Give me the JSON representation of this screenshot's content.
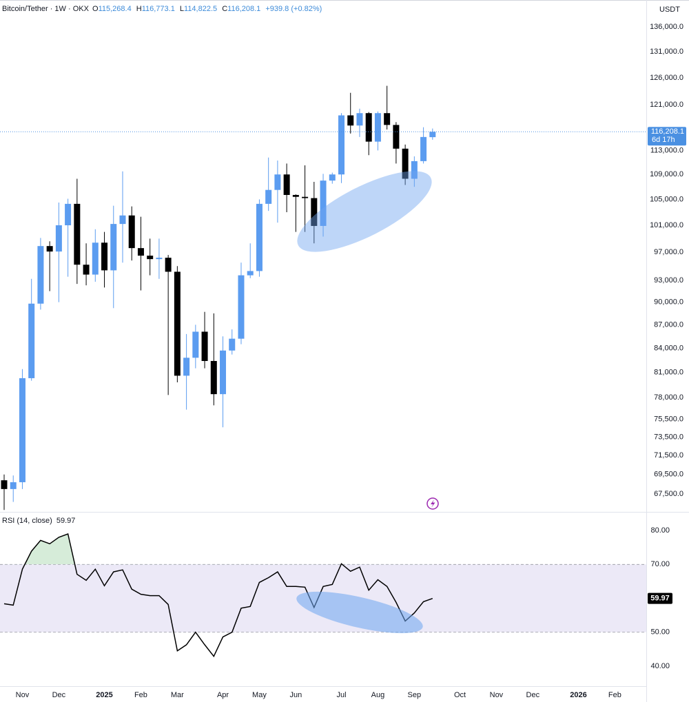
{
  "chart_data": [
    {
      "type": "candlestick",
      "title": "Bitcoin/Tether · 1W · OKX",
      "ohlc_labels": {
        "O": "115,268.4",
        "H": "116,773.1",
        "L": "114,822.5",
        "C": "116,208.1"
      },
      "change": "+939.8 (+0.82%)",
      "currency": "USDT",
      "price_badge": "116,208.1",
      "countdown": "6d 17h",
      "categories": [
        null,
        null,
        "Nov",
        null,
        null,
        null,
        "Dec",
        null,
        null,
        null,
        null,
        "2025",
        null,
        null,
        null,
        "Feb",
        null,
        null,
        null,
        "Mar",
        null,
        null,
        null,
        null,
        "Apr",
        null,
        null,
        null,
        "May",
        null,
        null,
        null,
        "Jun",
        null,
        null,
        null,
        null,
        "Jul",
        null,
        null,
        null,
        "Aug",
        null,
        null,
        null,
        "Sep",
        null,
        null,
        null,
        null,
        "Oct",
        null,
        null,
        null,
        "Nov",
        null,
        null,
        null,
        "Dec",
        null,
        null,
        null,
        null,
        "2026",
        null,
        null,
        null,
        "Feb",
        null,
        null,
        null
      ],
      "open": [
        68900,
        68000,
        68700,
        80300,
        89800,
        97900,
        97100,
        101000,
        104300,
        95200,
        93800,
        98400,
        94400,
        101200,
        102500,
        97600,
        96500,
        96000,
        96200,
        94200,
        80600,
        82800,
        86100,
        82400,
        78400,
        83700,
        85200,
        93700,
        94300,
        104300,
        106500,
        109000,
        105700,
        105400,
        105200,
        100900,
        108000,
        109000,
        119100,
        117300,
        119500,
        114500,
        119500,
        117400,
        113300,
        108300,
        111200,
        115268.4,
        null,
        null,
        null,
        null,
        null,
        null,
        null,
        null,
        null,
        null,
        null,
        null,
        null,
        null,
        null,
        null,
        null,
        null,
        null,
        null,
        null,
        null,
        null
      ],
      "high": [
        69500,
        69400,
        81400,
        93200,
        99100,
        98600,
        104500,
        105100,
        108300,
        98300,
        100400,
        100000,
        104000,
        109500,
        103900,
        102300,
        99000,
        99000,
        96600,
        95000,
        85800,
        87000,
        88700,
        88500,
        85500,
        86400,
        95500,
        98300,
        105000,
        111800,
        111300,
        110800,
        105800,
        110500,
        107800,
        109100,
        109300,
        119500,
        123200,
        120300,
        119700,
        119800,
        124500,
        117900,
        114000,
        112000,
        117000,
        116773.1,
        null,
        null,
        null,
        null,
        null,
        null,
        null,
        null,
        null,
        null,
        null,
        null,
        null,
        null,
        null,
        null,
        null,
        null,
        null,
        null,
        null,
        null,
        null
      ],
      "low": [
        65900,
        66700,
        68000,
        80000,
        89000,
        91500,
        90000,
        93500,
        92500,
        92300,
        92800,
        92000,
        89200,
        95500,
        95800,
        91600,
        93700,
        93200,
        78300,
        79800,
        76600,
        81500,
        81500,
        77100,
        74600,
        83200,
        84500,
        93300,
        93500,
        103200,
        101400,
        103000,
        100000,
        100000,
        98300,
        99300,
        107500,
        107600,
        115900,
        115300,
        112200,
        113000,
        116600,
        110800,
        107300,
        107000,
        110800,
        114822.5,
        null,
        null,
        null,
        null,
        null,
        null,
        null,
        null,
        null,
        null,
        null,
        null,
        null,
        null,
        null,
        null,
        null,
        null,
        null,
        null,
        null,
        null,
        null
      ],
      "close": [
        68000,
        68700,
        80300,
        89800,
        97900,
        97100,
        101000,
        104300,
        95200,
        93800,
        98400,
        94400,
        101200,
        102500,
        97600,
        96500,
        96000,
        96200,
        94200,
        80600,
        82800,
        86100,
        82400,
        78400,
        83700,
        85200,
        93700,
        94300,
        104300,
        106500,
        109000,
        105700,
        105400,
        105200,
        100900,
        108000,
        109000,
        119100,
        117300,
        119500,
        114500,
        119500,
        117400,
        113300,
        108300,
        111200,
        115300,
        116208.1,
        null,
        null,
        null,
        null,
        null,
        null,
        null,
        null,
        null,
        null,
        null,
        null,
        null,
        null,
        null,
        null,
        null,
        null,
        null,
        null,
        null,
        null,
        null
      ],
      "up_color": "#5b9cf0",
      "down_color": "#000000",
      "badge_color": "#4a90e2",
      "log_scale": true,
      "ylim": [
        65780,
        141600
      ],
      "yticks": [
        {
          "value": 136000,
          "label": "136,000.0"
        },
        {
          "value": 131000,
          "label": "131,000.0"
        },
        {
          "value": 126000,
          "label": "126,000.0"
        },
        {
          "value": 121000,
          "label": "121,000.0"
        },
        {
          "value": 113000,
          "label": "113,000.0"
        },
        {
          "value": 109000,
          "label": "109,000.0"
        },
        {
          "value": 105000,
          "label": "105,000.0"
        },
        {
          "value": 101000,
          "label": "101,000.0"
        },
        {
          "value": 97000,
          "label": "97,000.0"
        },
        {
          "value": 93000,
          "label": "93,000.0"
        },
        {
          "value": 90000,
          "label": "90,000.0"
        },
        {
          "value": 87000,
          "label": "87,000.0"
        },
        {
          "value": 84000,
          "label": "84,000.0"
        },
        {
          "value": 81000,
          "label": "81,000.0"
        },
        {
          "value": 78000,
          "label": "78,000.0"
        },
        {
          "value": 75500,
          "label": "75,500.0"
        },
        {
          "value": 73500,
          "label": "73,500.0"
        },
        {
          "value": 71500,
          "label": "71,500.0"
        },
        {
          "value": 69500,
          "label": "69,500.0"
        },
        {
          "value": 67500,
          "label": "67,500.0"
        }
      ]
    },
    {
      "type": "line",
      "title": "RSI (14, close)",
      "last_label": "59.97",
      "values": [
        58.4,
        58,
        68.6,
        73.9,
        77.1,
        76.1,
        78,
        79,
        67.1,
        65.3,
        68.6,
        63.7,
        67.8,
        68.4,
        62.7,
        61.2,
        60.8,
        60.8,
        58.2,
        44.5,
        46.3,
        50,
        46.3,
        42.9,
        48.6,
        50,
        57.1,
        57.6,
        64.7,
        66.1,
        67.8,
        63.5,
        63.5,
        63.3,
        57.3,
        63.5,
        64.1,
        70.2,
        68,
        69.2,
        62.4,
        65.5,
        63.5,
        58.8,
        53.3,
        55.7,
        59,
        59.97,
        null,
        null,
        null,
        null,
        null,
        null,
        null,
        null,
        null,
        null,
        null,
        null,
        null,
        null,
        null,
        null,
        null,
        null,
        null,
        null,
        null,
        null,
        null
      ],
      "color": "#000000",
      "band": [
        50,
        70
      ],
      "band_color": "#ece9f7",
      "overbought_color": "#d6ecd9",
      "ylim": [
        34.3,
        85.1
      ],
      "yticks": [
        {
          "value": 80,
          "label": "80.00"
        },
        {
          "value": 70,
          "label": "70.00"
        },
        {
          "value": 50,
          "label": "50.00"
        },
        {
          "value": 40,
          "label": "40.00"
        }
      ]
    }
  ]
}
